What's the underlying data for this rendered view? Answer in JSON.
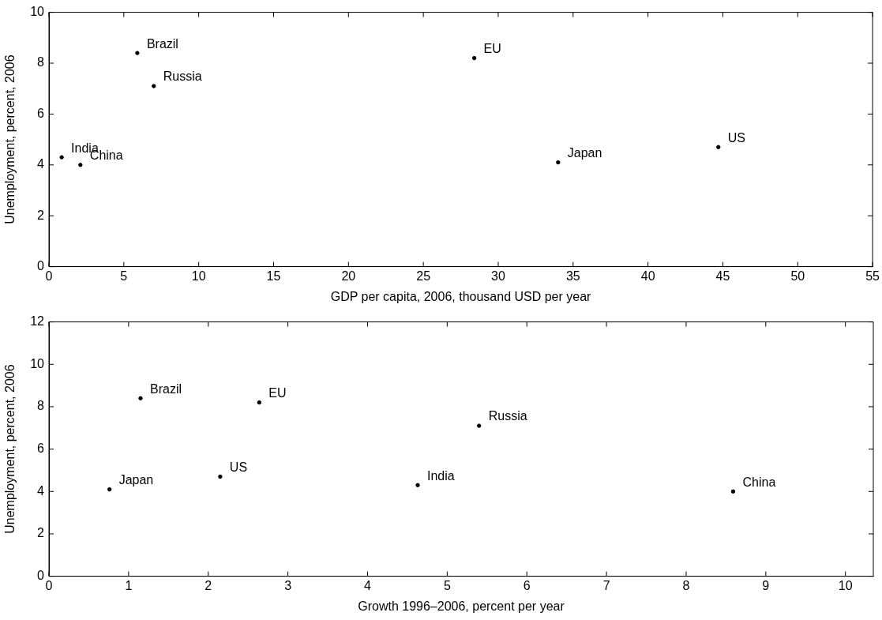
{
  "chart_data": [
    {
      "type": "scatter",
      "xlabel": "GDP per capita, 2006, thousand USD per year",
      "ylabel": "Unemployment, percent, 2006",
      "x": [
        0.85,
        2.1,
        5.9,
        7.0,
        28.4,
        34.0,
        44.7
      ],
      "values": [
        4.3,
        4.0,
        8.4,
        7.1,
        8.2,
        4.1,
        4.7
      ],
      "color": "#000000",
      "marker": "circle",
      "xlim": [
        0,
        55
      ],
      "xticks": [
        0,
        5,
        10,
        15,
        20,
        25,
        30,
        35,
        40,
        45,
        50,
        55
      ],
      "ylim": [
        0,
        10
      ],
      "yticks": [
        0,
        2,
        4,
        6,
        8,
        10
      ],
      "grid": false,
      "legend": false,
      "annotations": [
        {
          "text": "India",
          "x": 0.85,
          "y": 4.3
        },
        {
          "text": "China",
          "x": 2.1,
          "y": 4.0
        },
        {
          "text": "Brazil",
          "x": 5.9,
          "y": 8.4
        },
        {
          "text": "Russia",
          "x": 7.0,
          "y": 7.1
        },
        {
          "text": "EU",
          "x": 28.4,
          "y": 8.2
        },
        {
          "text": "Japan",
          "x": 34.0,
          "y": 4.1
        },
        {
          "text": "US",
          "x": 44.7,
          "y": 4.7
        }
      ]
    },
    {
      "type": "scatter",
      "xlabel": "Growth 1996–2006, percent per year",
      "ylabel": "Unemployment, percent, 2006",
      "x": [
        0.76,
        1.15,
        2.15,
        2.64,
        4.63,
        5.4,
        8.59
      ],
      "values": [
        4.1,
        8.4,
        4.7,
        8.2,
        4.3,
        7.1,
        4.0
      ],
      "color": "#000000",
      "marker": "circle",
      "xlim": [
        0,
        10.35
      ],
      "xticks": [
        0,
        1,
        2,
        3,
        4,
        5,
        6,
        7,
        8,
        9,
        10
      ],
      "ylim": [
        0,
        12
      ],
      "yticks": [
        0,
        2,
        4,
        6,
        8,
        10,
        12
      ],
      "grid": false,
      "legend": false,
      "annotations": [
        {
          "text": "Japan",
          "x": 0.76,
          "y": 4.1
        },
        {
          "text": "Brazil",
          "x": 1.15,
          "y": 8.4
        },
        {
          "text": "US",
          "x": 2.15,
          "y": 4.7
        },
        {
          "text": "EU",
          "x": 2.64,
          "y": 8.2
        },
        {
          "text": "India",
          "x": 4.63,
          "y": 4.3
        },
        {
          "text": "Russia",
          "x": 5.4,
          "y": 7.1
        },
        {
          "text": "China",
          "x": 8.59,
          "y": 4.0
        }
      ]
    }
  ]
}
